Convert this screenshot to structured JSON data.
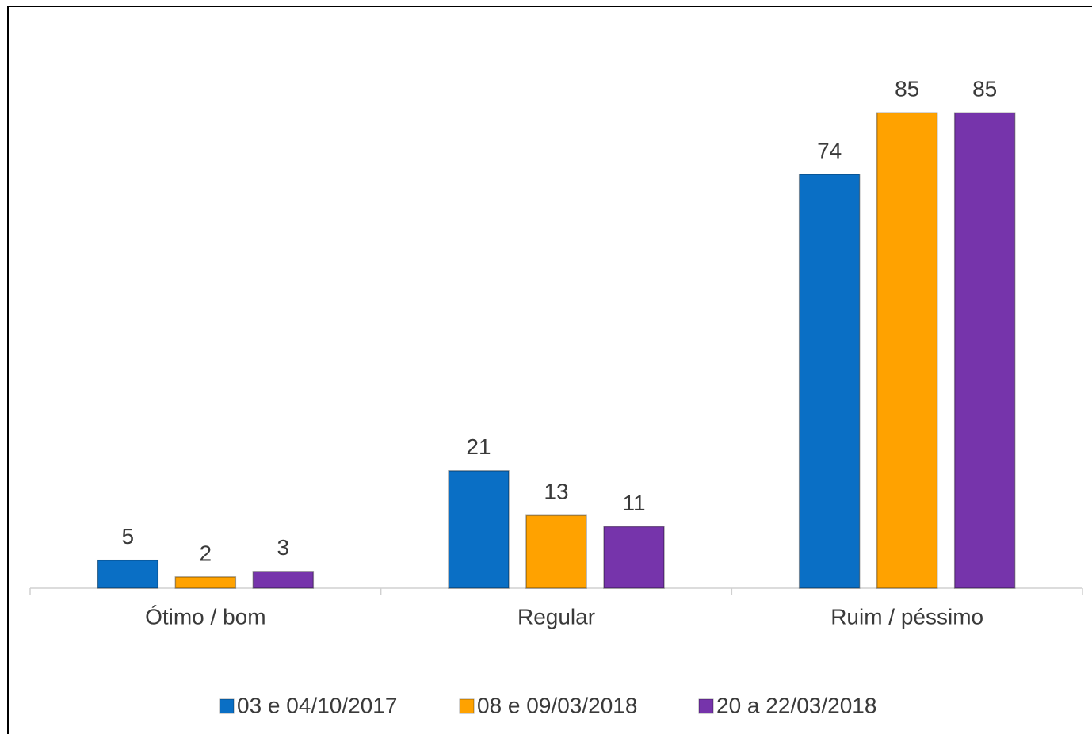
{
  "chart_data": {
    "type": "bar",
    "categories": [
      "Ótimo / bom",
      "Regular",
      "Ruim / péssimo"
    ],
    "series": [
      {
        "name": "03 e 04/10/2017",
        "color": "#0a6fc5",
        "values": [
          5,
          21,
          74
        ]
      },
      {
        "name": "08 e 09/03/2018",
        "color": "#ffa200",
        "values": [
          2,
          13,
          85
        ]
      },
      {
        "name": "20 a 22/03/2018",
        "color": "#7634ab",
        "values": [
          3,
          11,
          85
        ]
      }
    ],
    "ylim": [
      0,
      90
    ],
    "legend": "bottom"
  }
}
